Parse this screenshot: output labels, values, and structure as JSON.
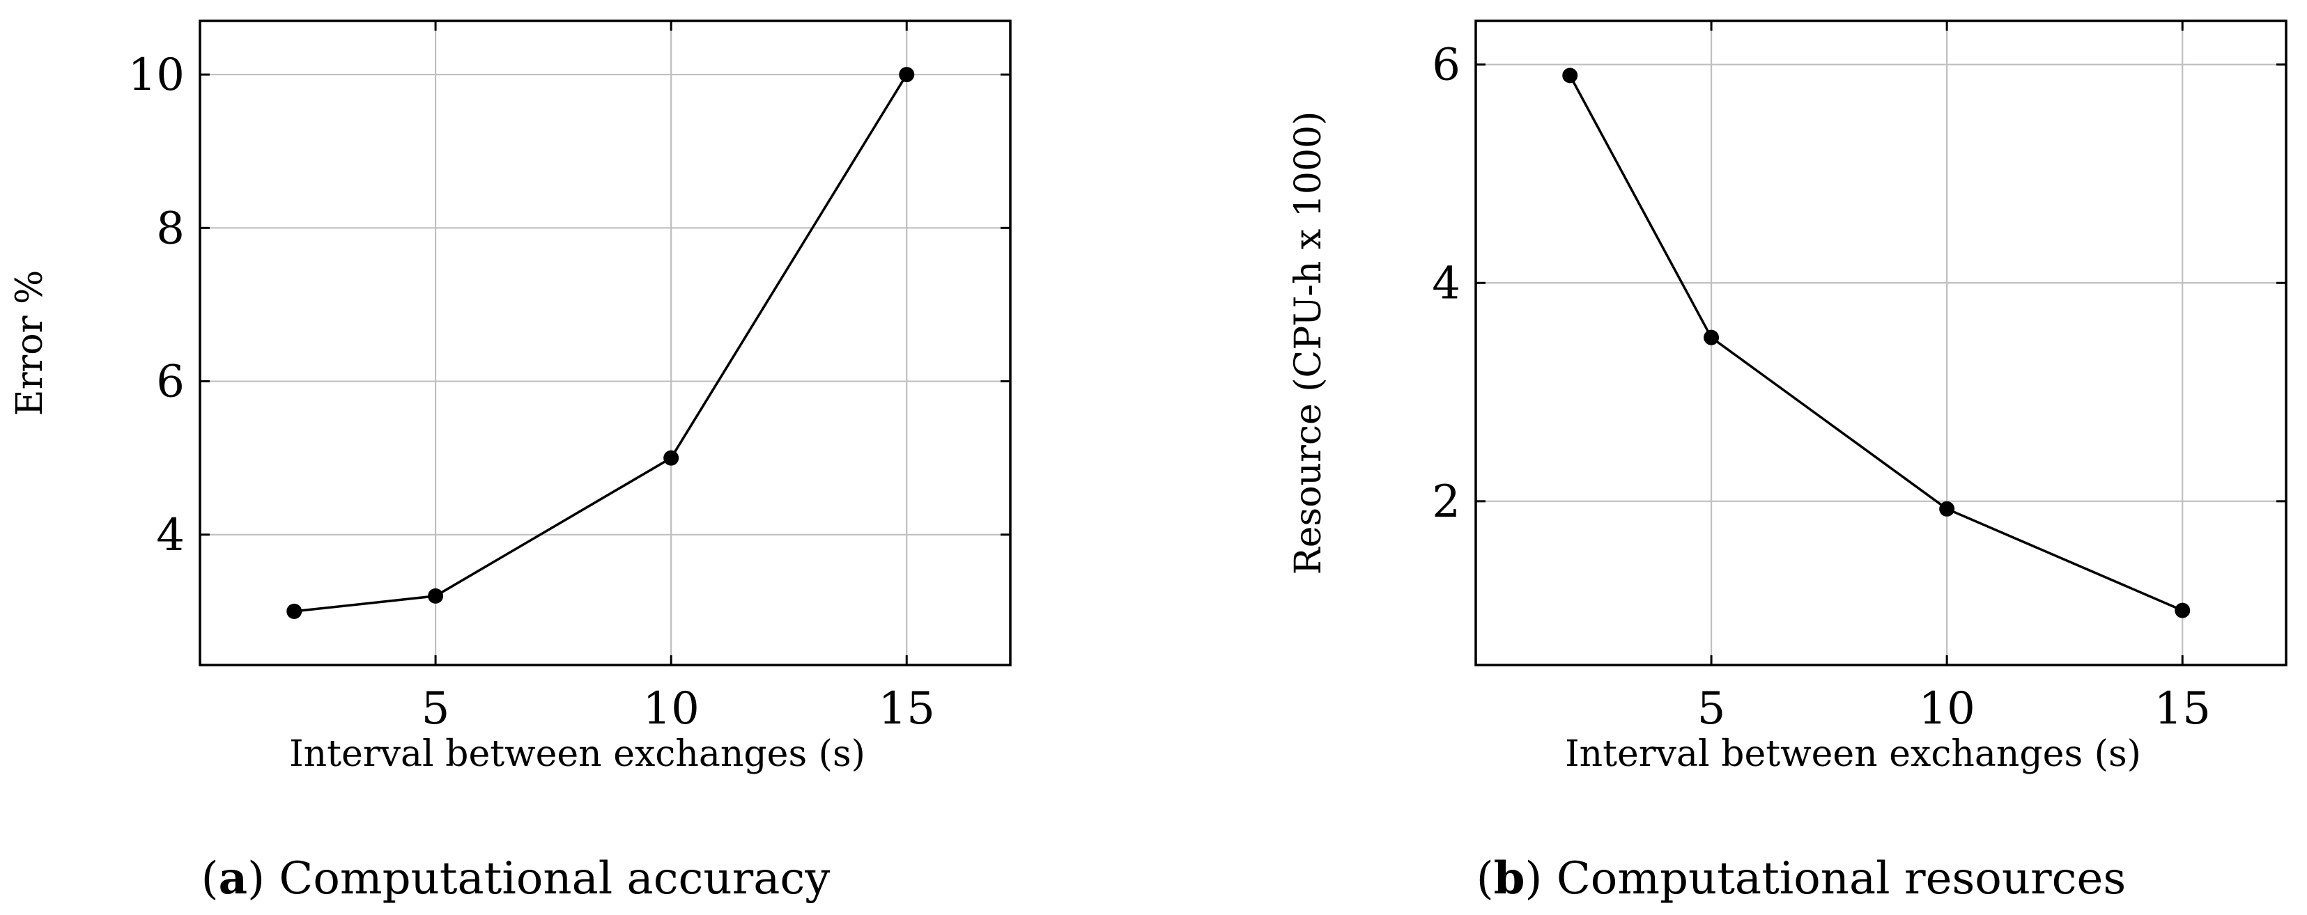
{
  "chart_data": [
    {
      "type": "line",
      "xlabel": "Interval between exchanges (s)",
      "ylabel": "Error %",
      "x": [
        2,
        5,
        10,
        15
      ],
      "values": [
        3.0,
        3.2,
        5.0,
        10.0
      ],
      "xticks": [
        "5",
        "10",
        "15"
      ],
      "yticks": [
        "4",
        "6",
        "8",
        "10"
      ],
      "xlim": [
        0.0,
        17.2
      ],
      "ylim": [
        2.3,
        10.7
      ],
      "grid": true,
      "caption_letter": "a",
      "caption_text": "Computational accuracy"
    },
    {
      "type": "line",
      "xlabel": "Interval between exchanges (s)",
      "ylabel": "Resource (CPU-h x 1000)",
      "x": [
        2,
        5,
        10,
        15
      ],
      "values": [
        5.9,
        3.5,
        1.93,
        1.0
      ],
      "xticks": [
        "5",
        "10",
        "15"
      ],
      "yticks": [
        "2",
        "4",
        "6"
      ],
      "xlim": [
        0.0,
        17.2
      ],
      "ylim": [
        0.5,
        6.4
      ],
      "grid": true,
      "caption_letter": "b",
      "caption_text": "Computational resources"
    }
  ]
}
